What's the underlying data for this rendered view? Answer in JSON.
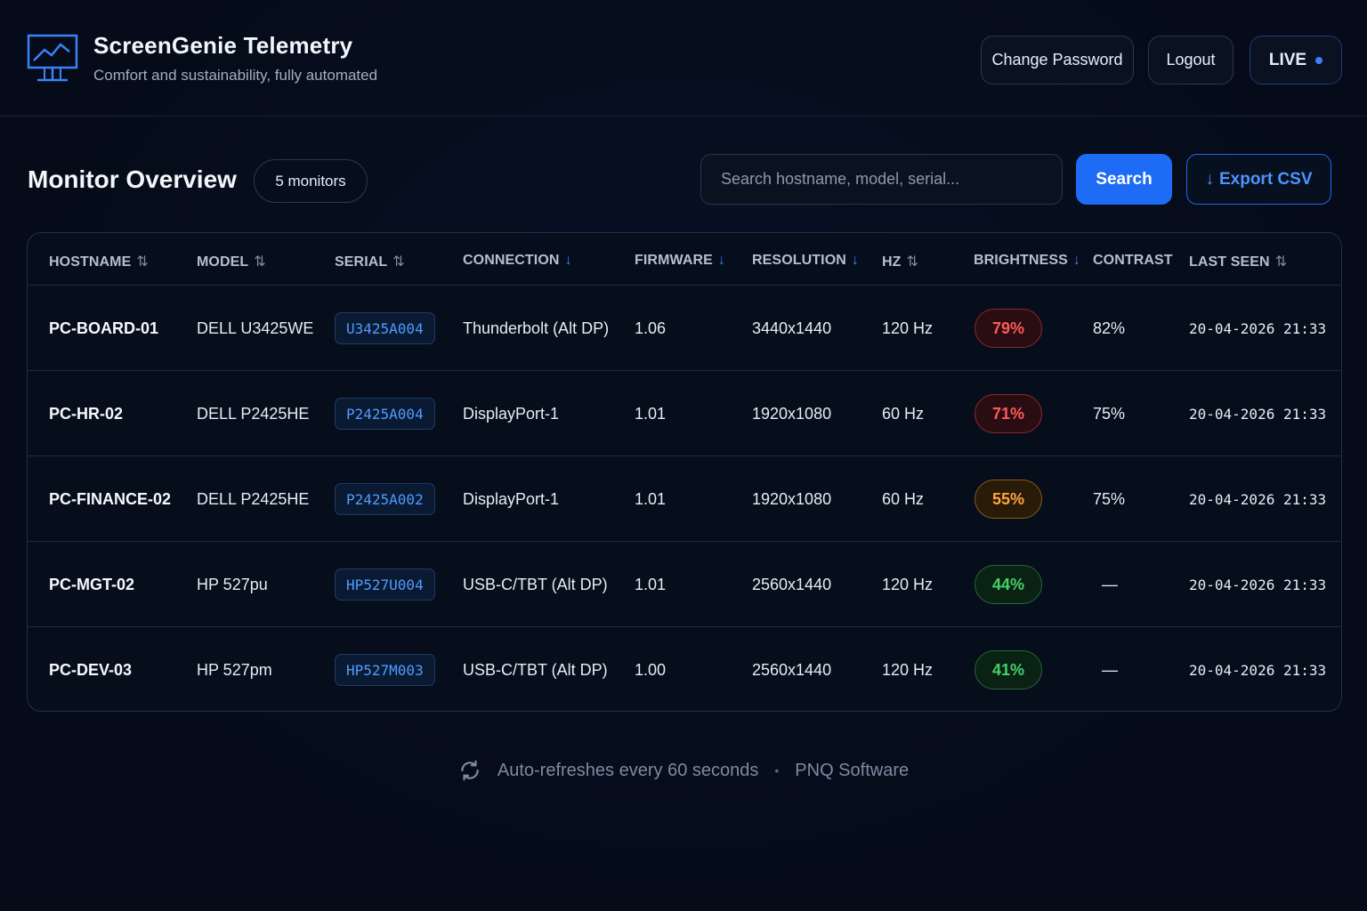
{
  "app": {
    "title": "ScreenGenie Telemetry",
    "subtitle": "Comfort and sustainability, fully automated"
  },
  "header_buttons": {
    "change_password": "Change Password",
    "logout": "Logout",
    "live": "LIVE"
  },
  "overview": {
    "title": "Monitor Overview",
    "count_label": "5 monitors",
    "search_placeholder": "Search hostname, model, serial...",
    "search_value": "",
    "search_label": "Search",
    "export_label": "Export CSV",
    "export_icon": "↓"
  },
  "table": {
    "columns": [
      {
        "label": "HOSTNAME",
        "sort": "⇅",
        "active": false
      },
      {
        "label": "MODEL",
        "sort": "⇅",
        "active": false
      },
      {
        "label": "SERIAL",
        "sort": "⇅",
        "active": false
      },
      {
        "label": "CONNECTION",
        "sort": "↓",
        "active": true
      },
      {
        "label": "FIRMWARE",
        "sort": "↓",
        "active": true
      },
      {
        "label": "RESOLUTION",
        "sort": "↓",
        "active": true
      },
      {
        "label": "HZ",
        "sort": "⇅",
        "active": false
      },
      {
        "label": "BRIGHTNESS",
        "sort": "↓",
        "active": true
      },
      {
        "label": "CONTRAST",
        "sort": "",
        "active": false
      },
      {
        "label": "LAST SEEN",
        "sort": "⇅",
        "active": false
      }
    ],
    "rows": [
      {
        "hostname": "PC-BOARD-01",
        "model": "DELL U3425WE",
        "serial": "U3425A004",
        "connection": "Thunderbolt (Alt DP)",
        "firmware": "1.06",
        "resolution": "3440x1440",
        "hz": "120 Hz",
        "brightness": "79%",
        "brightness_level": "high",
        "contrast": "82%",
        "last_seen": "20-04-2026 21:33"
      },
      {
        "hostname": "PC-HR-02",
        "model": "DELL P2425HE",
        "serial": "P2425A004",
        "connection": "DisplayPort-1",
        "firmware": "1.01",
        "resolution": "1920x1080",
        "hz": "60 Hz",
        "brightness": "71%",
        "brightness_level": "high",
        "contrast": "75%",
        "last_seen": "20-04-2026 21:33"
      },
      {
        "hostname": "PC-FINANCE-02",
        "model": "DELL P2425HE",
        "serial": "P2425A002",
        "connection": "DisplayPort-1",
        "firmware": "1.01",
        "resolution": "1920x1080",
        "hz": "60 Hz",
        "brightness": "55%",
        "brightness_level": "medium",
        "contrast": "75%",
        "last_seen": "20-04-2026 21:33"
      },
      {
        "hostname": "PC-MGT-02",
        "model": "HP 527pu",
        "serial": "HP527U004",
        "connection": "USB-C/TBT (Alt DP)",
        "firmware": "1.01",
        "resolution": "2560x1440",
        "hz": "120 Hz",
        "brightness": "44%",
        "brightness_level": "low",
        "contrast": "—",
        "last_seen": "20-04-2026 21:33"
      },
      {
        "hostname": "PC-DEV-03",
        "model": "HP 527pm",
        "serial": "HP527M003",
        "connection": "USB-C/TBT (Alt DP)",
        "firmware": "1.00",
        "resolution": "2560x1440",
        "hz": "120 Hz",
        "brightness": "41%",
        "brightness_level": "low",
        "contrast": "—",
        "last_seen": "20-04-2026 21:33"
      }
    ]
  },
  "brightness_colors": {
    "high": {
      "text": "#ff5a5a",
      "border": "#8a2a2a",
      "bg": "#2a0d12"
    },
    "medium": {
      "text": "#ffa53a",
      "border": "#8a5a1c",
      "bg": "#2a1a08"
    },
    "low": {
      "text": "#45d16a",
      "border": "#1f6a34",
      "bg": "#0a2214"
    }
  },
  "footer": {
    "refresh_text": "Auto-refreshes every 60 seconds",
    "separator": "•",
    "company": "PNQ Software"
  },
  "icons": {
    "brand": "monitor-chart-icon",
    "refresh": "refresh-icon",
    "export": "download-arrow-icon",
    "live": "live-dot-icon"
  },
  "colors": {
    "accent": "#1e6cf5",
    "background": "#050b18"
  }
}
